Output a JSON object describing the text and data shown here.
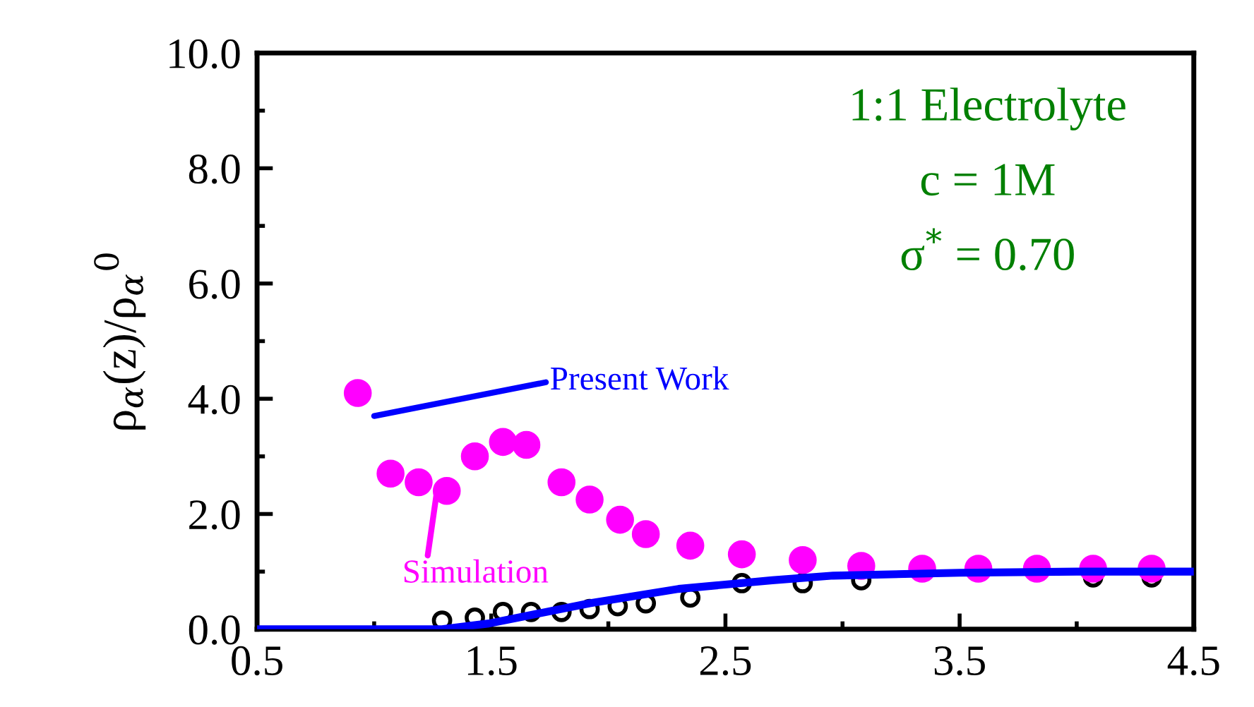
{
  "chart_data": {
    "type": "scatter",
    "ylabel": "ρ$_{α}$(z)/ρ$_{α}$$^{0}$",
    "annotations": [
      "1:1 Electrolyte",
      "c = 1M",
      "σ$^{*}$ = 0.70"
    ],
    "xlim": [
      0.5,
      4.5
    ],
    "xticks": [
      0.5,
      1.5,
      2.5,
      3.5,
      4.5
    ],
    "ylim": [
      0,
      10
    ],
    "yticks": [
      {
        "value": 0,
        "label": "0.0"
      },
      {
        "value": 2,
        "label": "2.0"
      },
      {
        "value": 4,
        "label": "4.0"
      },
      {
        "value": 6,
        "label": "6.0"
      },
      {
        "value": 8,
        "label": "8.0"
      },
      {
        "value": 10,
        "label": "10.0"
      }
    ],
    "grid": false,
    "legend": "left",
    "series": [
      {
        "name": "Simulation",
        "marker": "circle",
        "color": "#ff00ff",
        "x": [
          0.93,
          1.07,
          1.19,
          1.31,
          1.43,
          1.55,
          1.65,
          1.8,
          1.92,
          2.05,
          2.16,
          2.35,
          2.57,
          2.83,
          3.08,
          3.34,
          3.58,
          3.83,
          4.07,
          4.32
        ],
        "values": [
          4.1,
          2.7,
          2.55,
          2.4,
          3.0,
          3.25,
          3.2,
          2.55,
          2.25,
          1.9,
          1.65,
          1.45,
          1.3,
          1.2,
          1.1,
          1.05,
          1.05,
          1.05,
          1.05,
          1.05
        ]
      },
      {
        "marker": "circle",
        "color": "#000000",
        "x": [
          1.29,
          1.43,
          1.55,
          1.67,
          1.8,
          1.92,
          2.04,
          2.16,
          2.35,
          2.57,
          2.83,
          3.08,
          4.07,
          4.32
        ],
        "values": [
          0.15,
          0.2,
          0.3,
          0.3,
          0.3,
          0.35,
          0.4,
          0.45,
          0.55,
          0.8,
          0.8,
          0.85,
          0.9,
          0.9
        ]
      },
      {
        "name": "Present Work",
        "type": "line",
        "marker": "none",
        "line_style": "solid",
        "color": "#0000ff",
        "x": [
          0.5,
          1.29,
          1.49,
          1.92,
          2.3,
          2.7,
          2.96,
          3.5,
          4.0,
          4.5
        ],
        "values": [
          0,
          0,
          0.1,
          0.45,
          0.7,
          0.85,
          0.93,
          0.98,
          1.0,
          1.0
        ]
      }
    ]
  }
}
